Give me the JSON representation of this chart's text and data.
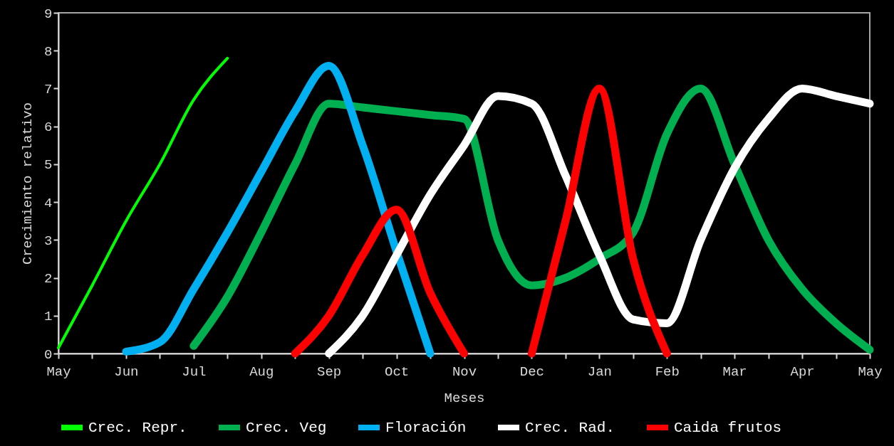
{
  "chart_data": {
    "type": "line",
    "xlabel": "Meses",
    "ylabel": "Crecimiento relativo",
    "categories": [
      "May",
      null,
      "Jun",
      null,
      "Jul",
      null,
      "Aug",
      null,
      "Sep",
      null,
      "Oct",
      null,
      "Nov",
      null,
      "Dec",
      null,
      "Jan",
      null,
      "Feb",
      null,
      "Mar",
      null,
      "Apr",
      null,
      "May"
    ],
    "ylim": [
      0,
      9
    ],
    "yticks": [
      0,
      1,
      2,
      3,
      4,
      5,
      6,
      7,
      8,
      9
    ],
    "grid": false,
    "legend": "bottom",
    "marker": "none",
    "line_style": "solid",
    "series": [
      {
        "name": "Crec. Repr.",
        "color": "#00ff00",
        "values": [
          0.15,
          1.8,
          3.5,
          5.0,
          6.7,
          7.8,
          null,
          null,
          null,
          null,
          null,
          null,
          null,
          null,
          null,
          null,
          null,
          null,
          null,
          null,
          null,
          null,
          null,
          null,
          null
        ]
      },
      {
        "name": "Crec. Veg",
        "color": "#00b050",
        "values": [
          null,
          null,
          null,
          null,
          0.2,
          1.5,
          3.2,
          5.0,
          6.6,
          6.5,
          6.4,
          6.3,
          6.2,
          3.0,
          1.8,
          2.0,
          2.5,
          3.2,
          5.8,
          7.0,
          5.0,
          3.0,
          1.7,
          0.8,
          0.1
        ]
      },
      {
        "name": "Floración",
        "color": "#00b0f0",
        "values": [
          null,
          null,
          0.05,
          0.3,
          1.7,
          3.2,
          4.8,
          6.4,
          7.6,
          5.5,
          2.7,
          0,
          null,
          null,
          null,
          null,
          null,
          null,
          null,
          null,
          null,
          null,
          null,
          null,
          null
        ]
      },
      {
        "name": "Crec. Rad.",
        "color": "#ffffff",
        "values": [
          null,
          null,
          null,
          null,
          null,
          null,
          null,
          null,
          0,
          1.0,
          2.6,
          4.2,
          5.5,
          6.8,
          6.6,
          4.7,
          2.6,
          0.9,
          0.8,
          3.0,
          4.9,
          6.2,
          7.0,
          6.8,
          6.6
        ]
      },
      {
        "name": "Caida frutos",
        "color": "#ff0000",
        "values": [
          null,
          null,
          null,
          null,
          null,
          null,
          null,
          0,
          1.0,
          2.6,
          3.8,
          1.6,
          0,
          null,
          0,
          3.5,
          7.0,
          2.5,
          0,
          null,
          null,
          null,
          null,
          null,
          null
        ]
      }
    ]
  }
}
